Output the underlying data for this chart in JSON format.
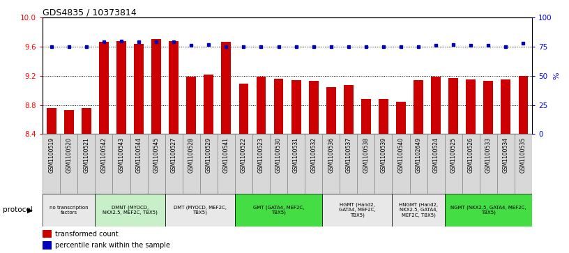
{
  "title": "GDS4835 / 10373814",
  "samples": [
    "GSM1100519",
    "GSM1100520",
    "GSM1100521",
    "GSM1100542",
    "GSM1100543",
    "GSM1100544",
    "GSM1100545",
    "GSM1100527",
    "GSM1100528",
    "GSM1100529",
    "GSM1100541",
    "GSM1100522",
    "GSM1100523",
    "GSM1100530",
    "GSM1100531",
    "GSM1100532",
    "GSM1100536",
    "GSM1100537",
    "GSM1100538",
    "GSM1100539",
    "GSM1100540",
    "GSM1102649",
    "GSM1100524",
    "GSM1100525",
    "GSM1100526",
    "GSM1100533",
    "GSM1100534",
    "GSM1100535"
  ],
  "bar_values": [
    8.76,
    8.73,
    8.76,
    9.67,
    9.68,
    9.64,
    9.71,
    9.68,
    9.19,
    9.22,
    9.67,
    9.09,
    9.19,
    9.16,
    9.14,
    9.13,
    9.05,
    9.07,
    8.88,
    8.88,
    8.84,
    9.14,
    9.19,
    9.17,
    9.15,
    9.13,
    9.15,
    9.2
  ],
  "percentile_values": [
    75,
    75,
    75,
    79,
    80,
    79,
    79,
    79,
    76,
    77,
    75,
    75,
    75,
    75,
    75,
    75,
    75,
    75,
    75,
    75,
    75,
    75,
    76,
    77,
    76,
    76,
    75,
    78
  ],
  "ymin": 8.4,
  "ymax": 10.0,
  "yticks_left": [
    8.4,
    8.8,
    9.2,
    9.6,
    10.0
  ],
  "yticks_right": [
    0,
    25,
    50,
    75,
    100
  ],
  "bar_color": "#cc0000",
  "dot_color": "#0000bb",
  "protocol_groups": [
    {
      "label": "no transcription\nfactors",
      "start": 0,
      "end": 3,
      "color": "#e8e8e8"
    },
    {
      "label": "DMNT (MYOCD,\nNKX2.5, MEF2C, TBX5)",
      "start": 3,
      "end": 7,
      "color": "#c8f0c8"
    },
    {
      "label": "DMT (MYOCD, MEF2C,\nTBX5)",
      "start": 7,
      "end": 11,
      "color": "#e8e8e8"
    },
    {
      "label": "GMT (GATA4, MEF2C,\nTBX5)",
      "start": 11,
      "end": 16,
      "color": "#44dd44"
    },
    {
      "label": "HGMT (Hand2,\nGATA4, MEF2C,\nTBX5)",
      "start": 16,
      "end": 20,
      "color": "#e8e8e8"
    },
    {
      "label": "HNGMT (Hand2,\nNKX2.5, GATA4,\nMEF2C, TBX5)",
      "start": 20,
      "end": 23,
      "color": "#e8e8e8"
    },
    {
      "label": "NGMT (NKX2.5, GATA4, MEF2C,\nTBX5)",
      "start": 23,
      "end": 28,
      "color": "#44dd44"
    }
  ],
  "legend_bar_label": "transformed count",
  "legend_dot_label": "percentile rank within the sample",
  "ylabel_right": "%",
  "dotted_line_values": [
    8.8,
    9.2,
    9.6
  ],
  "protocol_label": "protocol",
  "xtick_label_bg": "#d8d8d8",
  "xtick_border_color": "#888888"
}
